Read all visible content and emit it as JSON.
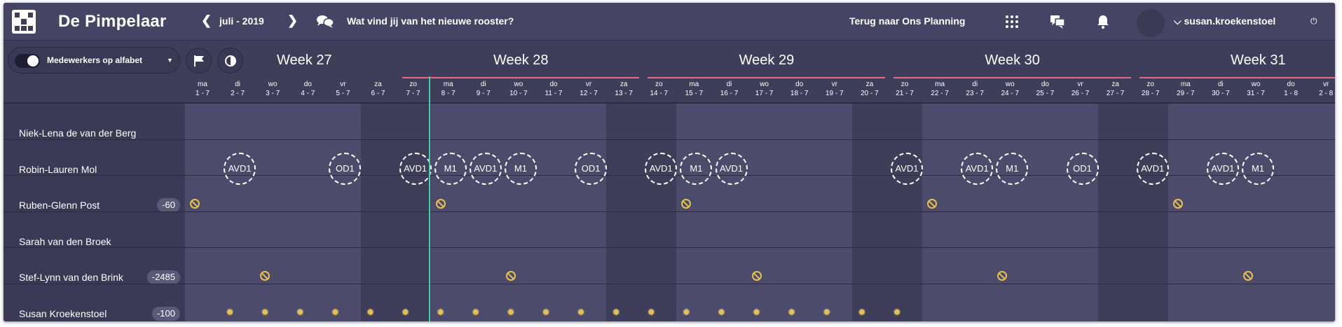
{
  "header": {
    "app_title": "De Pimpelaar",
    "month": "juli - 2019",
    "question": "Wat vind jij van het nieuwe rooster?",
    "back_link": "Terug naar Ons Planning",
    "username": "susan.kroekenstoel",
    "icons": [
      "grid-icon",
      "chat-icon",
      "notification-icon",
      "power-icon"
    ]
  },
  "toolbar": {
    "sort_toggle_label": "Medewerkers op alfabet"
  },
  "weeks": [
    "Week 27",
    "Week 28",
    "Week 29",
    "Week 30",
    "Week 31"
  ],
  "days": [
    {
      "d": "ma",
      "n": "1 - 7"
    },
    {
      "d": "di",
      "n": "2 - 7"
    },
    {
      "d": "wo",
      "n": "3 - 7"
    },
    {
      "d": "do",
      "n": "4 - 7"
    },
    {
      "d": "vr",
      "n": "5 - 7"
    },
    {
      "d": "za",
      "n": "6 - 7"
    },
    {
      "d": "zo",
      "n": "7 - 7"
    },
    {
      "d": "ma",
      "n": "8 - 7"
    },
    {
      "d": "di",
      "n": "9 - 7"
    },
    {
      "d": "wo",
      "n": "10 - 7"
    },
    {
      "d": "do",
      "n": "11 - 7"
    },
    {
      "d": "vr",
      "n": "12 - 7"
    },
    {
      "d": "za",
      "n": "13 - 7"
    },
    {
      "d": "zo",
      "n": "14 - 7"
    },
    {
      "d": "ma",
      "n": "15 - 7"
    },
    {
      "d": "di",
      "n": "16 - 7"
    },
    {
      "d": "wo",
      "n": "17 - 7"
    },
    {
      "d": "do",
      "n": "18 - 7"
    },
    {
      "d": "vr",
      "n": "19 - 7"
    },
    {
      "d": "za",
      "n": "20 - 7"
    },
    {
      "d": "zo",
      "n": "21 - 7"
    },
    {
      "d": "ma",
      "n": "22 - 7"
    },
    {
      "d": "di",
      "n": "23 - 7"
    },
    {
      "d": "wo",
      "n": "24 - 7"
    },
    {
      "d": "do",
      "n": "25 - 7"
    },
    {
      "d": "vr",
      "n": "26 - 7"
    },
    {
      "d": "za",
      "n": "27 - 7"
    },
    {
      "d": "zo",
      "n": "28 - 7"
    },
    {
      "d": "ma",
      "n": "29 - 7"
    },
    {
      "d": "di",
      "n": "30 - 7"
    },
    {
      "d": "wo",
      "n": "31 - 7"
    },
    {
      "d": "do",
      "n": "1 - 8"
    },
    {
      "d": "vr",
      "n": "2 - 8"
    }
  ],
  "employees": [
    {
      "name": "Niek-Lena de van der Berg",
      "badge": ""
    },
    {
      "name": "Robin-Lauren Mol",
      "badge": ""
    },
    {
      "name": "Ruben-Glenn Post",
      "badge": "-60"
    },
    {
      "name": "Sarah van den Broek",
      "badge": ""
    },
    {
      "name": "Stef-Lynn van den Brink",
      "badge": "-2485"
    },
    {
      "name": "Susan Kroekenstoel",
      "badge": "-100"
    }
  ],
  "shifts": [
    {
      "row": 1,
      "day": 1,
      "label": "AVD1"
    },
    {
      "row": 1,
      "day": 4,
      "label": "OD1"
    },
    {
      "row": 1,
      "day": 6,
      "label": "AVD1"
    },
    {
      "row": 1,
      "day": 7,
      "label": "M1"
    },
    {
      "row": 1,
      "day": 8,
      "label": "AVD1"
    },
    {
      "row": 1,
      "day": 9,
      "label": "M1"
    },
    {
      "row": 1,
      "day": 11,
      "label": "OD1"
    },
    {
      "row": 1,
      "day": 13,
      "label": "AVD1"
    },
    {
      "row": 1,
      "day": 14,
      "label": "M1"
    },
    {
      "row": 1,
      "day": 15,
      "label": "AVD1"
    },
    {
      "row": 1,
      "day": 20,
      "label": "AVD1"
    },
    {
      "row": 1,
      "day": 22,
      "label": "AVD1"
    },
    {
      "row": 1,
      "day": 23,
      "label": "M1"
    },
    {
      "row": 1,
      "day": 25,
      "label": "OD1"
    },
    {
      "row": 1,
      "day": 27,
      "label": "AVD1"
    },
    {
      "row": 1,
      "day": 29,
      "label": "AVD1"
    },
    {
      "row": 1,
      "day": 30,
      "label": "M1"
    }
  ],
  "unavailable": [
    {
      "row": 2,
      "day": 0
    },
    {
      "row": 2,
      "day": 7
    },
    {
      "row": 2,
      "day": 14
    },
    {
      "row": 2,
      "day": 21
    },
    {
      "row": 2,
      "day": 28
    },
    {
      "row": 4,
      "day": 2
    },
    {
      "row": 4,
      "day": 9
    },
    {
      "row": 4,
      "day": 16
    },
    {
      "row": 4,
      "day": 23
    },
    {
      "row": 4,
      "day": 30
    }
  ],
  "leave_days": [
    1,
    2,
    3,
    4,
    5,
    6,
    7,
    8,
    9,
    10,
    11,
    12,
    13,
    14,
    15,
    16,
    17,
    18,
    19,
    20
  ],
  "colors": {
    "accent": "#3fd1a8",
    "week_line": "#e36b88",
    "icon_yellow": "#e7c24b",
    "weekend": "#3e3d5a",
    "weekday": "#4c4b6b"
  }
}
